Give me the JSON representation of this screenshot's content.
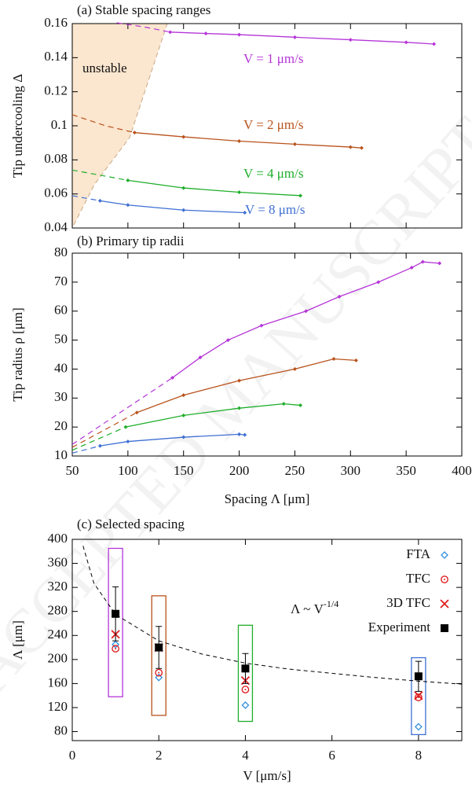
{
  "watermark": "ACCEPTED MANUSCRIPT",
  "chart_data": [
    {
      "type": "line",
      "title": "(a) Stable spacing ranges",
      "ylabel": "Tip undercooling Δ",
      "xlim": [
        50,
        400
      ],
      "xticks": [
        50,
        100,
        150,
        200,
        250,
        300,
        350,
        400
      ],
      "xtick_labels": false,
      "ylim": [
        0.04,
        0.16
      ],
      "yticks": [
        0.04,
        0.06,
        0.08,
        0.1,
        0.12,
        0.14,
        0.16
      ],
      "annotation": "unstable",
      "series": [
        {
          "name": "V = 1 μm/s",
          "color": "#b535d8",
          "x": [
            138,
            170,
            200,
            250,
            300,
            350,
            375
          ],
          "values": [
            0.155,
            0.1542,
            0.1535,
            0.152,
            0.1505,
            0.149,
            0.148
          ]
        },
        {
          "name": "V = 2 μm/s",
          "color": "#b9531c",
          "x": [
            106,
            150,
            200,
            250,
            300,
            310
          ],
          "values": [
            0.096,
            0.0935,
            0.091,
            0.0892,
            0.0875,
            0.087
          ]
        },
        {
          "name": "V = 4 μm/s",
          "color": "#1fae2a",
          "x": [
            100,
            150,
            200,
            255
          ],
          "values": [
            0.068,
            0.0635,
            0.061,
            0.059
          ]
        },
        {
          "name": "V = 8 μm/s",
          "color": "#3f6fd3",
          "x": [
            75,
            100,
            150,
            205
          ],
          "values": [
            0.056,
            0.0535,
            0.0505,
            0.049
          ]
        }
      ],
      "extrapolations": [
        {
          "color": "#b535d8",
          "x": [
            90,
            115,
            138
          ],
          "values": [
            0.1605,
            0.158,
            0.155
          ]
        },
        {
          "color": "#b9531c",
          "x": [
            50,
            80,
            106
          ],
          "values": [
            0.1065,
            0.1,
            0.096
          ]
        },
        {
          "color": "#1fae2a",
          "x": [
            50,
            75,
            100
          ],
          "values": [
            0.074,
            0.071,
            0.068
          ]
        },
        {
          "color": "#3f6fd3",
          "x": [
            50,
            62,
            75
          ],
          "values": [
            0.059,
            0.0575,
            0.056
          ]
        }
      ]
    },
    {
      "type": "line",
      "title": "(b) Primary tip radii",
      "ylabel": "Tip radius ρ [μm]",
      "xlabel": "Spacing Λ [μm]",
      "xlim": [
        50,
        400
      ],
      "xticks": [
        50,
        100,
        150,
        200,
        250,
        300,
        350,
        400
      ],
      "xtick_labels": true,
      "ylim": [
        10,
        80
      ],
      "yticks": [
        10,
        20,
        30,
        40,
        50,
        60,
        70,
        80
      ],
      "series": [
        {
          "color": "#b535d8",
          "x": [
            140,
            165,
            190,
            220,
            260,
            290,
            325,
            355,
            365,
            380
          ],
          "values": [
            37,
            44,
            50,
            55,
            60,
            65,
            70,
            75,
            77,
            76.5
          ]
        },
        {
          "color": "#b9531c",
          "x": [
            108,
            150,
            200,
            250,
            285,
            305
          ],
          "values": [
            25,
            31,
            36,
            40,
            43.5,
            43
          ]
        },
        {
          "color": "#1fae2a",
          "x": [
            98,
            150,
            200,
            240,
            255
          ],
          "values": [
            20,
            24,
            26.5,
            28,
            27.5
          ]
        },
        {
          "color": "#3f6fd3",
          "x": [
            75,
            100,
            150,
            200,
            205
          ],
          "values": [
            13.5,
            15,
            16.5,
            17.5,
            17.3
          ]
        }
      ],
      "extrapolations": [
        {
          "color": "#b535d8",
          "x": [
            50,
            140
          ],
          "values": [
            14,
            37
          ]
        },
        {
          "color": "#b9531c",
          "x": [
            50,
            108
          ],
          "values": [
            13,
            25
          ]
        },
        {
          "color": "#1fae2a",
          "x": [
            50,
            98
          ],
          "values": [
            12,
            20
          ]
        },
        {
          "color": "#3f6fd3",
          "x": [
            50,
            75
          ],
          "values": [
            11,
            13.5
          ]
        }
      ]
    },
    {
      "type": "scatter",
      "title": "(c) Selected spacing",
      "ylabel": "Λ [μm]",
      "xlabel": "V [μm/s]",
      "xlim": [
        0,
        9
      ],
      "xticks": [
        0,
        2,
        4,
        6,
        8
      ],
      "ylim": [
        65,
        400
      ],
      "yticks": [
        80,
        120,
        160,
        200,
        240,
        280,
        320,
        360,
        400
      ],
      "x": [
        1,
        2,
        4,
        8
      ],
      "boxes": {
        "low": [
          138,
          107,
          97,
          75
        ],
        "high": [
          385,
          306,
          257,
          203
        ],
        "colors": [
          "#b535d8",
          "#b9531c",
          "#1fae2a",
          "#3f6fd3"
        ]
      },
      "series": [
        {
          "name": "FTA",
          "color": "#2f8fe0",
          "marker": "diamond",
          "values": [
            225,
            170,
            124,
            88
          ]
        },
        {
          "name": "TFC",
          "color": "#e02020",
          "marker": "circle",
          "values": [
            218,
            178,
            150,
            137
          ]
        },
        {
          "name": "3D TFC",
          "color": "#e02020",
          "marker": "cross",
          "values": [
            242,
            220,
            165,
            140
          ]
        },
        {
          "name": "Experiment",
          "color": "#000000",
          "marker": "square",
          "values": [
            276,
            220,
            185,
            172
          ],
          "errors": [
            45,
            35,
            25,
            25
          ]
        }
      ],
      "fit": {
        "label": "Λ ~ V",
        "label_sup": "-1/4",
        "x": [
          0.25,
          0.5,
          1,
          2,
          3,
          4,
          5,
          6,
          7,
          8,
          9
        ],
        "values": [
          389,
          327,
          275,
          231,
          209,
          194,
          184,
          177,
          170,
          164,
          159
        ]
      }
    }
  ]
}
